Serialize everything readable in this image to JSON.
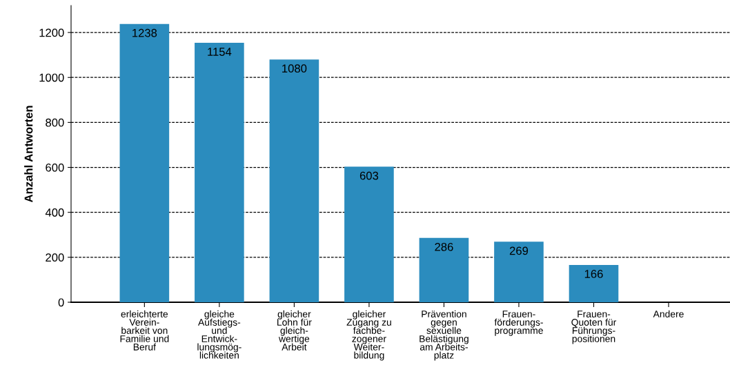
{
  "chart_data": {
    "type": "bar",
    "ylabel": "Anzahl Antworten",
    "categories": [
      "erleichterte\nVerein-\nbarkeit von\nFamilie und\nBeruf",
      "gleiche\nAufstiegs-\nund\nEntwick-\nlungsmög-\nlichkeiten",
      "gleicher\nLohn für\ngleich-\nwertige\nArbeit",
      "gleicher\nZugang zu\nfachbe-\nzogener\nWeiter-\nbildung",
      "Prävention\ngegen\nsexuelle\nBelästigung\nam Arbeits-\nplatz",
      "Frauen-\nförderungs-\nprogramme",
      "Frauen-\nQuoten für\nFührungs-\npositionen",
      "Andere"
    ],
    "values": [
      1238,
      1154,
      1080,
      603,
      286,
      269,
      166,
      0
    ],
    "value_labels": [
      "1238",
      "1154",
      "1080",
      "603",
      "286",
      "269",
      "166",
      null
    ],
    "color": "#2b8cbe",
    "ylim": [
      0,
      1320
    ],
    "yticks": [
      0,
      200,
      400,
      600,
      800,
      1000,
      1200
    ],
    "grid": "y",
    "legend": false
  }
}
